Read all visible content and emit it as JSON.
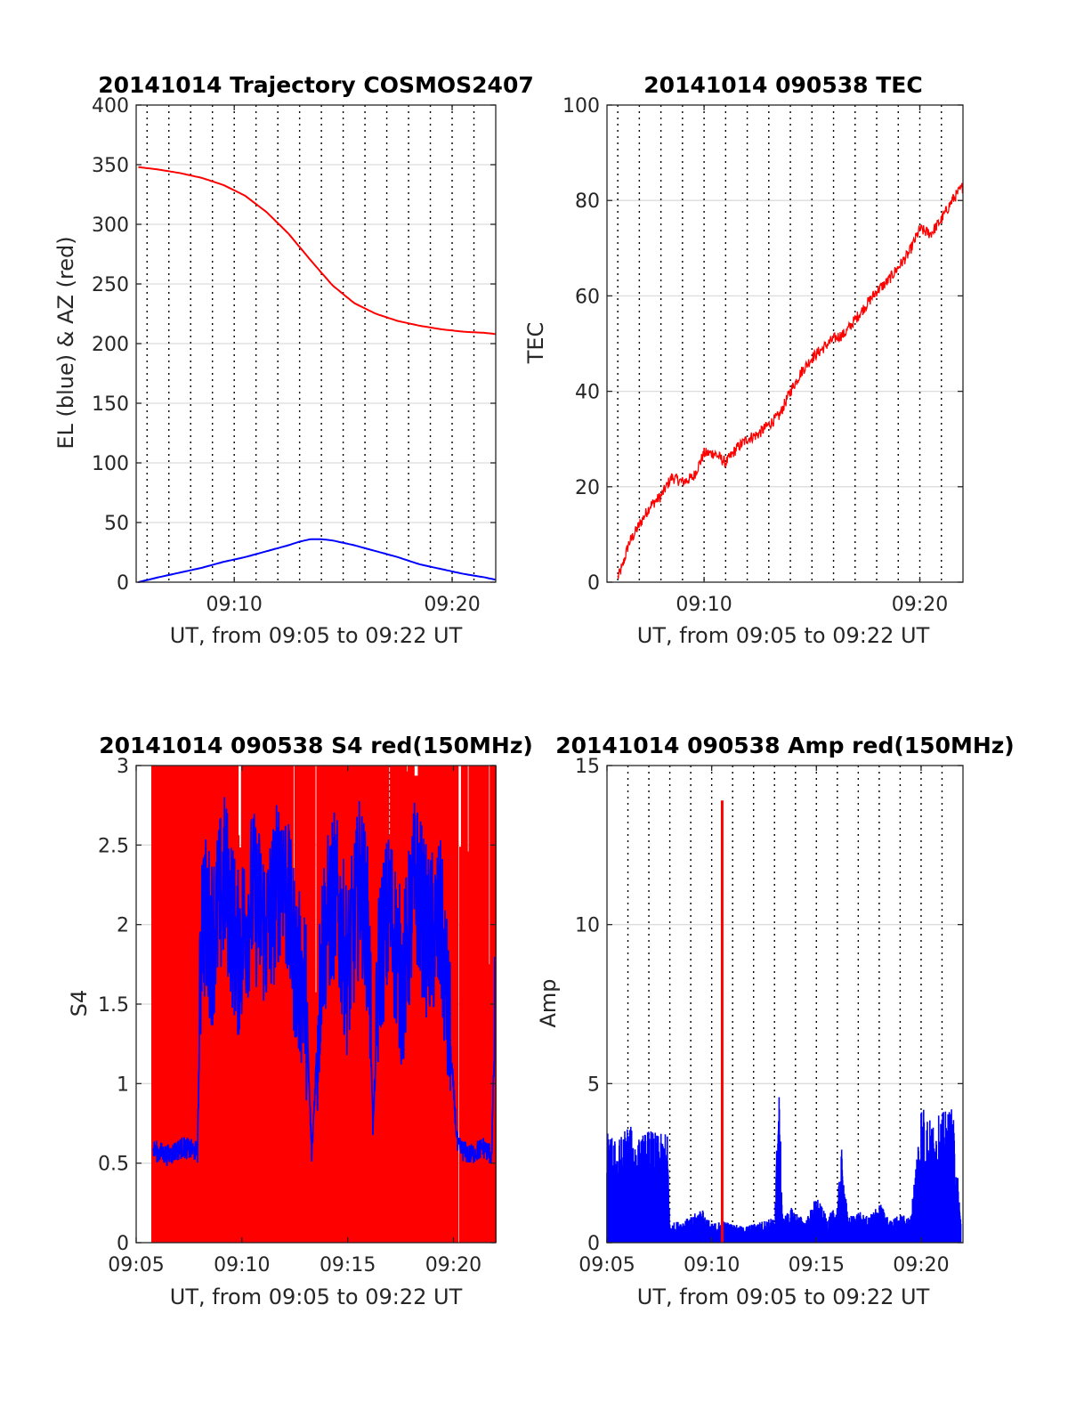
{
  "chart_data": [
    {
      "type": "line",
      "title": "20141014 Trajectory COSMOS2407",
      "xlabel": "UT, from 09:05 to 09:22 UT",
      "ylabel": "EL (blue) & AZ (red)",
      "xlim": [
        5.5,
        22.0
      ],
      "ylim": [
        0,
        400
      ],
      "xticks": [
        10,
        20
      ],
      "xticklabels": [
        "09:10",
        "09:20"
      ],
      "yticks": [
        0,
        50,
        100,
        150,
        200,
        250,
        300,
        350,
        400
      ],
      "yticklabels": [
        "0",
        "50",
        "100",
        "150",
        "200",
        "250",
        "300",
        "350",
        "400"
      ],
      "grid": "on",
      "colors": {
        "EL": "#0000ff",
        "AZ": "#ff0000"
      },
      "series": [
        {
          "color": "#ff0000",
          "x": [
            5.6,
            6.5,
            7.5,
            8.5,
            9.5,
            10.5,
            11.5,
            12.5,
            13.5,
            14.5,
            15.5,
            16.5,
            17.5,
            18.5,
            19.5,
            20.5,
            21.5,
            22.0
          ],
          "values": [
            348,
            346,
            343,
            339,
            333,
            324,
            310,
            292,
            270,
            249,
            234,
            225,
            219,
            215,
            212,
            210,
            209,
            208
          ]
        },
        {
          "color": "#0000ff",
          "x": [
            5.6,
            6.5,
            7.5,
            8.5,
            9.5,
            10.5,
            11.5,
            12.5,
            13.0,
            13.5,
            14.0,
            14.5,
            15.5,
            16.5,
            17.5,
            18.5,
            19.5,
            20.5,
            21.5,
            22.0
          ],
          "values": [
            0,
            4,
            8,
            12,
            17,
            21,
            26,
            31,
            34,
            36,
            36,
            35,
            31,
            26,
            21,
            15,
            11,
            7,
            4,
            2
          ]
        }
      ]
    },
    {
      "type": "line",
      "title": "20141014 090538 TEC",
      "xlabel": "UT, from 09:05 to 09:22 UT",
      "ylabel": "TEC",
      "xlim": [
        5.5,
        22.0
      ],
      "ylim": [
        0,
        100
      ],
      "xticks": [
        10,
        20
      ],
      "xticklabels": [
        "09:10",
        "09:20"
      ],
      "yticks": [
        0,
        20,
        40,
        60,
        80,
        100
      ],
      "yticklabels": [
        "0",
        "20",
        "40",
        "60",
        "80",
        "100"
      ],
      "grid": "on",
      "series": [
        {
          "color": "#ff0000",
          "x": [
            6.0,
            6.2,
            6.5,
            7.0,
            7.5,
            8.0,
            8.5,
            9.0,
            9.5,
            10.0,
            10.5,
            11.0,
            11.5,
            12.0,
            12.5,
            13.0,
            13.5,
            14.0,
            14.5,
            15.0,
            15.5,
            16.0,
            16.5,
            17.0,
            17.5,
            18.0,
            18.5,
            19.0,
            19.5,
            20.0,
            20.5,
            21.0,
            21.5,
            22.0
          ],
          "values": [
            1,
            3,
            8,
            12,
            16,
            18,
            22,
            21,
            22,
            27,
            27,
            25,
            28,
            30,
            31,
            33,
            35,
            40,
            44,
            47,
            49,
            51,
            52,
            55,
            58,
            61,
            63,
            66,
            69,
            74,
            73,
            76,
            80,
            83
          ]
        }
      ]
    },
    {
      "type": "line",
      "title": "20141014 090538 S4 red(150MHz)",
      "xlabel": "UT, from 09:05 to 09:22 UT",
      "ylabel": "S4",
      "xlim": [
        5.0,
        22.0
      ],
      "ylim": [
        0,
        3
      ],
      "xticks": [
        5,
        10,
        15,
        20
      ],
      "xticklabels": [
        "09:05",
        "09:10",
        "09:15",
        "09:20"
      ],
      "yticks": [
        0,
        0.5,
        1,
        1.5,
        2,
        2.5,
        3
      ],
      "yticklabels": [
        "0",
        "0.5",
        "1",
        "1.5",
        "2",
        "2.5",
        "3"
      ],
      "grid": "on",
      "series": [
        {
          "color": "#ff0000",
          "x": [
            5.8,
            22.0
          ],
          "values": [
            0,
            3
          ]
        },
        {
          "color": "#0000ff",
          "x": [
            5.8,
            6.5,
            7.2,
            7.9,
            8.1,
            8.6,
            9.2,
            9.8,
            10.5,
            11.2,
            11.9,
            12.6,
            13.0,
            13.3,
            13.8,
            14.4,
            15.0,
            15.6,
            16.0,
            16.2,
            16.5,
            17.0,
            17.6,
            18.2,
            18.8,
            19.4,
            19.7,
            20.2,
            20.8,
            21.4,
            21.8,
            22.0
          ],
          "values": [
            0.58,
            0.55,
            0.6,
            0.57,
            2.1,
            1.9,
            2.3,
            1.8,
            2.2,
            1.95,
            2.4,
            1.7,
            1.6,
            0.55,
            1.9,
            2.2,
            1.7,
            2.3,
            1.9,
            0.7,
            1.8,
            2.1,
            1.6,
            2.3,
            1.9,
            2.0,
            1.5,
            0.6,
            0.55,
            0.6,
            0.55,
            1.5
          ]
        }
      ]
    },
    {
      "type": "line",
      "title": "20141014 090538 Amp red(150MHz)",
      "xlabel": "UT, from 09:05 to 09:22 UT",
      "ylabel": "Amp",
      "xlim": [
        5.0,
        22.0
      ],
      "ylim": [
        0,
        15
      ],
      "xticks": [
        5,
        10,
        15,
        20
      ],
      "xticklabels": [
        "09:05",
        "09:10",
        "09:15",
        "09:20"
      ],
      "yticks": [
        0,
        5,
        10,
        15
      ],
      "yticklabels": [
        "0",
        "5",
        "10",
        "15"
      ],
      "grid": "on",
      "series": [
        {
          "color": "#ff0000",
          "x": [
            10.5,
            10.5
          ],
          "values": [
            0,
            13.9
          ]
        },
        {
          "color": "#0000ff",
          "x": [
            5.0,
            5.5,
            6.0,
            6.5,
            7.0,
            7.5,
            7.9,
            8.0,
            8.5,
            9.0,
            9.5,
            10.0,
            10.5,
            11.0,
            11.5,
            12.0,
            12.5,
            13.0,
            13.2,
            13.4,
            13.8,
            14.5,
            15.0,
            15.5,
            16.0,
            16.2,
            16.5,
            17.0,
            17.5,
            18.0,
            18.5,
            19.0,
            19.5,
            20.0,
            20.5,
            21.0,
            21.5,
            21.9
          ],
          "values": [
            3.5,
            3.2,
            3.8,
            3.3,
            3.6,
            3.4,
            3.5,
            0.6,
            0.7,
            0.8,
            1.1,
            0.6,
            0.7,
            0.6,
            0.5,
            0.6,
            0.7,
            0.8,
            5.2,
            0.8,
            1.1,
            0.7,
            1.5,
            0.8,
            1.2,
            3.0,
            0.8,
            1.0,
            0.8,
            1.3,
            0.7,
            0.9,
            0.8,
            4.5,
            3.8,
            4.1,
            4.3,
            0.8
          ]
        }
      ]
    }
  ]
}
